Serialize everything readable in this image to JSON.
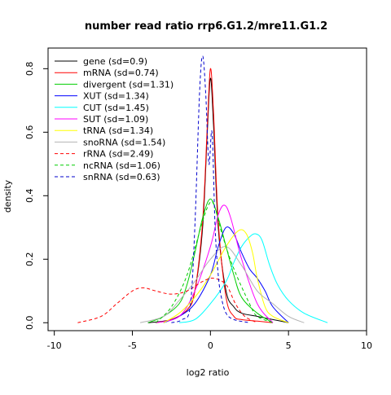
{
  "chart_data": {
    "type": "line",
    "title": "number read ratio rrp6.G1.2/mre11.G1.2",
    "xlabel": "log2 ratio",
    "ylabel": "density",
    "xlim": [
      -10.4,
      10.0
    ],
    "ylim": [
      -0.025,
      0.865
    ],
    "x_ticks": [
      -10,
      -5,
      0,
      5,
      10
    ],
    "x_tick_labels": [
      "-10",
      "-5",
      "0",
      "5",
      "10"
    ],
    "y_ticks": [
      0.0,
      0.2,
      0.4,
      0.6,
      0.8
    ],
    "y_tick_labels": [
      "0.0",
      "0.2",
      "0.4",
      "0.6",
      "0.8"
    ],
    "grid": false,
    "legend_position": "top-left",
    "series": [
      {
        "name": "gene (sd=0.9)",
        "color": "#000000",
        "dash": "solid",
        "x": [
          -4.0,
          -2.5,
          -1.5,
          -1.0,
          -0.5,
          -0.2,
          0.0,
          0.2,
          0.5,
          1.0,
          1.5,
          2.0,
          3.0,
          4.0,
          5.0
        ],
        "y": [
          0.0,
          0.01,
          0.04,
          0.1,
          0.3,
          0.6,
          0.77,
          0.62,
          0.3,
          0.1,
          0.05,
          0.03,
          0.02,
          0.01,
          0.0
        ]
      },
      {
        "name": "mRNA (sd=0.74)",
        "color": "#ff0000",
        "dash": "solid",
        "x": [
          -3.5,
          -2.5,
          -1.5,
          -1.0,
          -0.5,
          -0.2,
          0.0,
          0.2,
          0.5,
          1.0,
          1.5,
          2.0,
          3.0,
          4.0
        ],
        "y": [
          0.0,
          0.01,
          0.04,
          0.1,
          0.32,
          0.62,
          0.8,
          0.66,
          0.32,
          0.08,
          0.02,
          0.01,
          0.005,
          0.0
        ]
      },
      {
        "name": "divergent (sd=1.31)",
        "color": "#00cd00",
        "dash": "solid",
        "x": [
          -4.0,
          -3.0,
          -2.0,
          -1.5,
          -1.0,
          -0.5,
          0.0,
          0.5,
          1.0,
          1.5,
          2.0,
          3.0,
          4.0
        ],
        "y": [
          0.0,
          0.02,
          0.06,
          0.12,
          0.22,
          0.33,
          0.39,
          0.33,
          0.24,
          0.15,
          0.08,
          0.03,
          0.0
        ]
      },
      {
        "name": "XUT (sd=1.34)",
        "color": "#0000ff",
        "dash": "solid",
        "x": [
          -3.0,
          -2.0,
          -1.0,
          0.0,
          0.5,
          1.0,
          1.5,
          2.0,
          2.5,
          3.0,
          3.5,
          4.0,
          5.0
        ],
        "y": [
          0.0,
          0.02,
          0.06,
          0.15,
          0.24,
          0.3,
          0.28,
          0.22,
          0.17,
          0.14,
          0.1,
          0.05,
          0.0
        ]
      },
      {
        "name": "CUT (sd=1.45)",
        "color": "#00ffff",
        "dash": "solid",
        "x": [
          -2.0,
          -1.0,
          0.0,
          1.0,
          1.5,
          2.0,
          2.5,
          2.9,
          3.3,
          3.8,
          4.3,
          5.0,
          6.0,
          7.5
        ],
        "y": [
          0.0,
          0.01,
          0.06,
          0.13,
          0.19,
          0.24,
          0.27,
          0.28,
          0.26,
          0.18,
          0.12,
          0.07,
          0.03,
          0.0
        ]
      },
      {
        "name": "SUT (sd=1.09)",
        "color": "#ff00ff",
        "dash": "solid",
        "x": [
          -3.5,
          -2.0,
          -1.0,
          0.0,
          0.5,
          0.9,
          1.3,
          2.0,
          3.0,
          4.0
        ],
        "y": [
          0.0,
          0.02,
          0.1,
          0.24,
          0.34,
          0.37,
          0.33,
          0.2,
          0.06,
          0.0
        ]
      },
      {
        "name": "tRNA (sd=1.34)",
        "color": "#ffff00",
        "dash": "solid",
        "x": [
          -3.0,
          -2.0,
          -1.0,
          0.0,
          1.0,
          1.8,
          2.3,
          2.7,
          3.0,
          3.5,
          4.0,
          5.0
        ],
        "y": [
          0.0,
          0.03,
          0.08,
          0.15,
          0.24,
          0.29,
          0.28,
          0.22,
          0.14,
          0.05,
          0.02,
          0.0
        ]
      },
      {
        "name": "snoRNA (sd=1.54)",
        "color": "#b3b3b3",
        "dash": "solid",
        "x": [
          -4.5,
          -3.0,
          -2.0,
          -1.0,
          0.0,
          1.0,
          2.0,
          3.0,
          4.0,
          5.0,
          6.0
        ],
        "y": [
          0.0,
          0.02,
          0.07,
          0.13,
          0.2,
          0.24,
          0.18,
          0.1,
          0.06,
          0.02,
          0.0
        ]
      },
      {
        "name": "rRNA (sd=2.49)",
        "color": "#ff0000",
        "dash": "dashed",
        "x": [
          -8.5,
          -7.0,
          -6.0,
          -5.0,
          -4.3,
          -3.5,
          -2.5,
          -1.5,
          -0.5,
          0.2,
          1.0,
          1.6,
          2.2,
          3.0
        ],
        "y": [
          0.0,
          0.02,
          0.06,
          0.1,
          0.11,
          0.1,
          0.09,
          0.1,
          0.13,
          0.14,
          0.12,
          0.06,
          0.02,
          0.0
        ]
      },
      {
        "name": "ncRNA (sd=1.06)",
        "color": "#00cd00",
        "dash": "dashed",
        "x": [
          -3.5,
          -2.5,
          -1.5,
          -0.5,
          0.0,
          0.3,
          0.8,
          1.5,
          2.5,
          3.0,
          4.0
        ],
        "y": [
          0.0,
          0.05,
          0.15,
          0.32,
          0.38,
          0.36,
          0.27,
          0.17,
          0.06,
          0.02,
          0.0
        ]
      },
      {
        "name": "snRNA (sd=0.63)",
        "color": "#0000cd",
        "dash": "dashed",
        "x": [
          -2.5,
          -1.8,
          -1.3,
          -1.0,
          -0.7,
          -0.5,
          -0.3,
          -0.1,
          0.1,
          0.3,
          0.5,
          0.7,
          1.0,
          1.5,
          2.5
        ],
        "y": [
          0.0,
          0.01,
          0.05,
          0.3,
          0.72,
          0.84,
          0.72,
          0.5,
          0.6,
          0.3,
          0.15,
          0.08,
          0.03,
          0.01,
          0.0
        ]
      }
    ]
  }
}
